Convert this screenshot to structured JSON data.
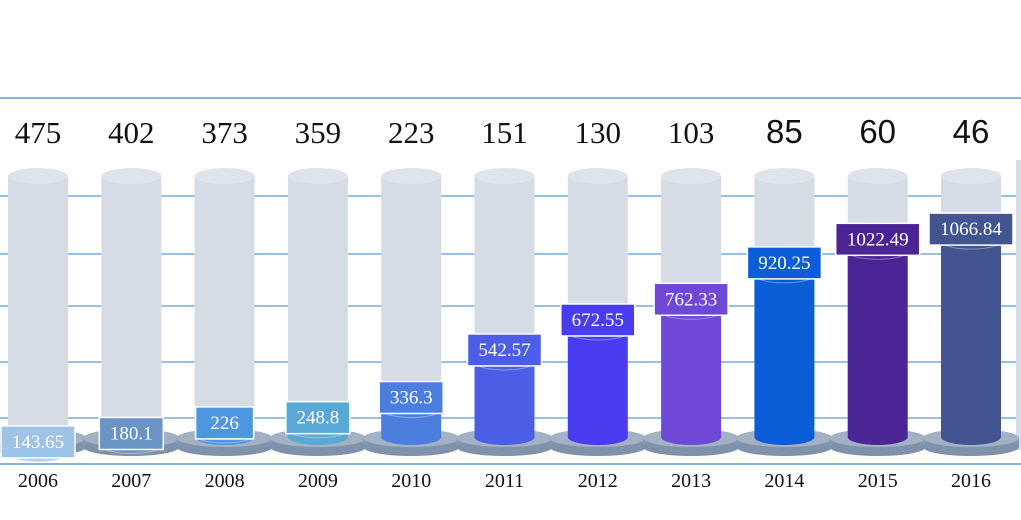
{
  "chart_data": {
    "type": "bar",
    "categories": [
      "2006",
      "2007",
      "2008",
      "2009",
      "2010",
      "2011",
      "2012",
      "2013",
      "2014",
      "2015",
      "2016"
    ],
    "series": [
      {
        "values": [
          143.65,
          180.1,
          226,
          248.8,
          336.3,
          542.57,
          672.55,
          762.33,
          920.25,
          1022.49,
          1066.84
        ]
      },
      {
        "values": [
          475,
          402,
          373,
          359,
          223,
          151,
          130,
          103,
          85,
          60,
          46
        ]
      }
    ],
    "value_labels": [
      "143.65",
      "180.1",
      "226",
      "248.8",
      "336.3",
      "542.57",
      "672.55",
      "762.33",
      "920.25",
      "1022.49",
      "1066.84"
    ],
    "top_labels": [
      "475",
      "402",
      "373",
      "359",
      "223",
      "151",
      "130",
      "103",
      "85",
      "60",
      "46"
    ],
    "colors": [
      "#9dc3e6",
      "#6a93c6",
      "#4f96e1",
      "#5aa8d6",
      "#4c7ee0",
      "#4d5ee6",
      "#4a3cf0",
      "#7048d8",
      "#0b5ed7",
      "#4b2595",
      "#425590"
    ],
    "label_box_colors": [
      "#9dc3e6",
      "#6a93c6",
      "#4f96e1",
      "#5aa8d6",
      "#4c7ee0",
      "#4d5ee6",
      "#4a3cf0",
      "#7048d8",
      "#0b5ed7",
      "#4b2595",
      "#425590"
    ],
    "track_color": "#d6dce5",
    "base_color": "#8497b0",
    "grid_color": "#5b9bd5",
    "ylim": [
      0,
      1200
    ],
    "grid": true
  }
}
